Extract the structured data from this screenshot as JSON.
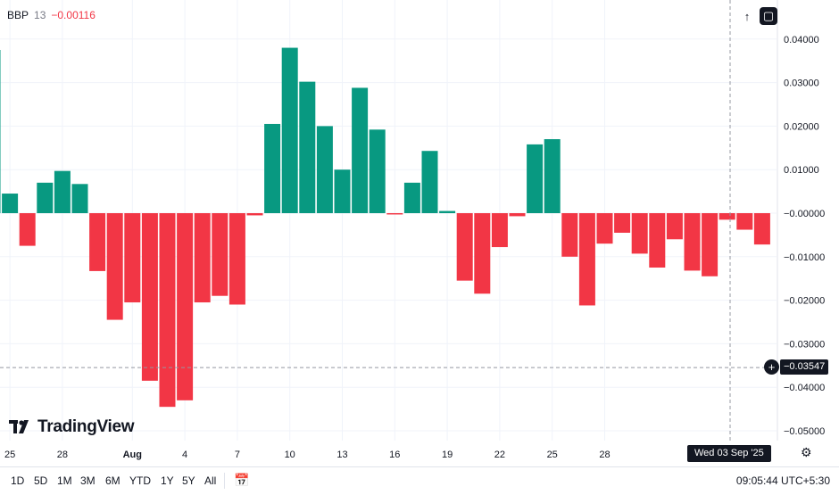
{
  "indicator": {
    "name": "BBP",
    "param": "13",
    "value": "−0.00116"
  },
  "logo_text": "TradingView",
  "crosshair": {
    "price": "−0.03547",
    "date": "Wed 03 Sep '25",
    "y_value": -0.03547
  },
  "range_buttons": [
    "1D",
    "5D",
    "1M",
    "3M",
    "6M",
    "YTD",
    "1Y",
    "5Y",
    "All"
  ],
  "clock": "09:05:44 UTC+5:30",
  "colors": {
    "positive": "#089981",
    "negative": "#f23645",
    "axis_text": "#131722",
    "grid": "#f0f3fa"
  },
  "chart_data": {
    "type": "bar",
    "title": "",
    "ylim": [
      -0.05,
      0.045
    ],
    "y_ticks": [
      "0.04000",
      "0.03000",
      "0.02000",
      "0.01000",
      "−0.00000",
      "−0.01000",
      "−0.02000",
      "−0.03000",
      "−0.04000",
      "−0.05000"
    ],
    "y_tick_values": [
      0.04,
      0.03,
      0.02,
      0.01,
      0,
      -0.01,
      -0.02,
      -0.03,
      -0.04,
      -0.05
    ],
    "x_tick_labels": [
      {
        "label": "25",
        "index": 1
      },
      {
        "label": "28",
        "index": 4
      },
      {
        "label": "Aug",
        "index": 8
      },
      {
        "label": "4",
        "index": 11
      },
      {
        "label": "7",
        "index": 14
      },
      {
        "label": "10",
        "index": 17
      },
      {
        "label": "13",
        "index": 20
      },
      {
        "label": "16",
        "index": 23
      },
      {
        "label": "19",
        "index": 26
      },
      {
        "label": "22",
        "index": 29
      },
      {
        "label": "25",
        "index": 32
      },
      {
        "label": "28",
        "index": 35
      }
    ],
    "values": [
      0.0375,
      0.0045,
      -0.0075,
      0.007,
      0.0097,
      0.0067,
      -0.0133,
      -0.0245,
      -0.0205,
      -0.0385,
      -0.0445,
      -0.043,
      -0.0205,
      -0.019,
      -0.021,
      -0.0005,
      0.0205,
      0.038,
      0.0302,
      0.02,
      0.01,
      0.0288,
      0.0192,
      -0.0003,
      0.007,
      0.0143,
      0.0005,
      -0.0155,
      -0.0185,
      -0.0078,
      -0.0007,
      0.0158,
      0.017,
      -0.01,
      -0.0212,
      -0.007,
      -0.0045,
      -0.0093,
      -0.0125,
      -0.006,
      -0.0132,
      -0.0145,
      -0.0015,
      -0.0038,
      -0.0072
    ]
  }
}
